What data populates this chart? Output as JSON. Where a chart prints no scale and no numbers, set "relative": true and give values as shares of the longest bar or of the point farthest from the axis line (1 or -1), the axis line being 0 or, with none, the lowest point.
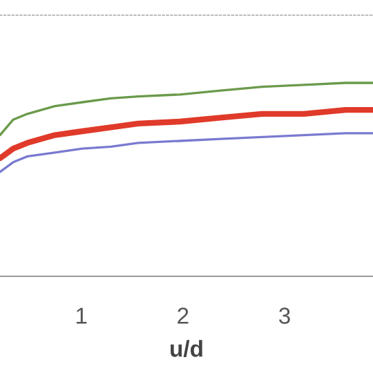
{
  "chart_data": {
    "type": "line",
    "relative": true,
    "xlabel": "u/d",
    "xlim": [
      0.2,
      3.87
    ],
    "xticks": [
      1,
      2,
      3
    ],
    "grid": false,
    "legend": false,
    "marker": "none",
    "line_style": "solid",
    "x": [
      0.2,
      0.33,
      0.47,
      0.74,
      1.01,
      1.29,
      1.56,
      1.97,
      2.37,
      2.78,
      3.19,
      3.6,
      3.87
    ],
    "series": [
      {
        "color": "#6a9a4a",
        "values": [
          0.73,
          0.81,
          0.84,
          0.88,
          0.9,
          0.92,
          0.93,
          0.94,
          0.96,
          0.98,
          0.99,
          1.0,
          1.0
        ]
      },
      {
        "color": "#e03a2a",
        "values": [
          0.61,
          0.66,
          0.69,
          0.73,
          0.75,
          0.77,
          0.79,
          0.8,
          0.82,
          0.84,
          0.84,
          0.86,
          0.86
        ]
      },
      {
        "color": "#7a7ad0",
        "values": [
          0.54,
          0.59,
          0.62,
          0.64,
          0.66,
          0.67,
          0.69,
          0.7,
          0.71,
          0.72,
          0.73,
          0.74,
          0.74
        ]
      }
    ]
  }
}
